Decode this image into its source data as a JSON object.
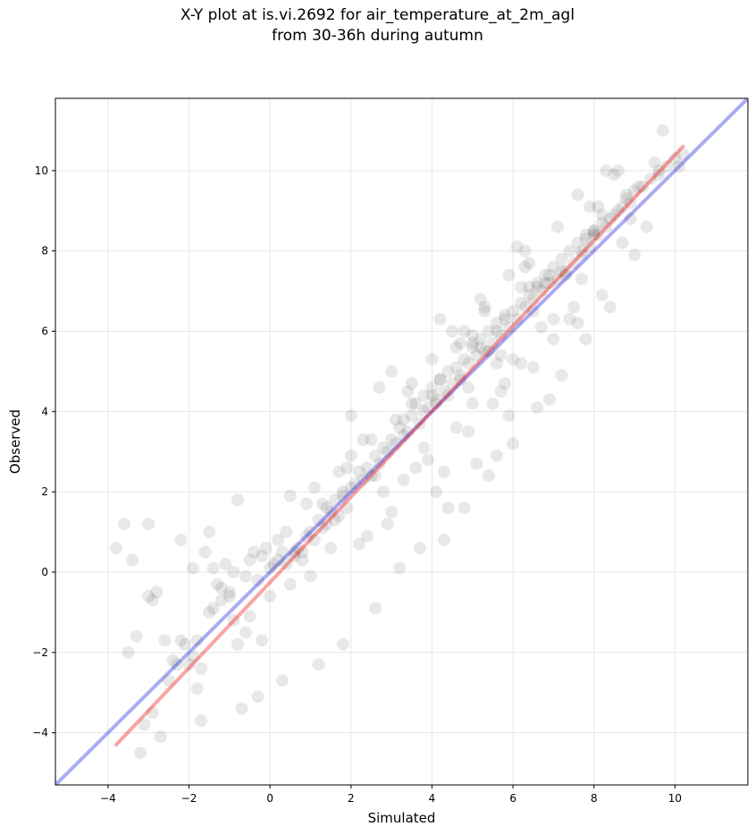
{
  "chart_data": {
    "type": "scatter",
    "title_lines": [
      "X-Y plot at is.vi.2692 for air_temperature_at_2m_agl",
      "from 30-36h during autumn"
    ],
    "xlabel": "Simulated",
    "ylabel": "Observed",
    "xlim": [
      -5.3,
      11.8
    ],
    "ylim": [
      -5.3,
      11.8
    ],
    "xticks": [
      -4,
      -2,
      0,
      2,
      4,
      6,
      8,
      10
    ],
    "yticks": [
      -4,
      -2,
      0,
      2,
      4,
      6,
      8,
      10
    ],
    "grid": true,
    "points_color": "#000000",
    "points_opacity": 0.09,
    "reference_line": {
      "color": "#0000dd",
      "opacity": 0.33,
      "from": [
        -5.3,
        -5.3
      ],
      "to": [
        11.8,
        11.8
      ]
    },
    "fit_line": {
      "color": "#ee1111",
      "opacity": 0.38,
      "from": [
        -3.8,
        -4.3
      ],
      "to": [
        10.2,
        10.6
      ]
    },
    "x": [
      -3.8,
      -3.6,
      -3.4,
      -3.3,
      -3.1,
      -3.0,
      -2.9,
      -2.8,
      -2.6,
      -2.4,
      -2.2,
      -2.1,
      -1.9,
      -1.8,
      -1.7,
      -1.6,
      -1.5,
      -1.4,
      -1.3,
      -1.2,
      -1.1,
      -1.0,
      -0.9,
      -0.8,
      -0.6,
      -0.5,
      -0.3,
      -0.2,
      -0.1,
      0.0,
      0.1,
      0.2,
      0.3,
      0.4,
      0.5,
      0.6,
      0.7,
      0.8,
      0.9,
      1.0,
      1.1,
      1.2,
      1.3,
      1.4,
      1.5,
      1.6,
      1.7,
      1.8,
      1.9,
      2.0,
      2.1,
      2.2,
      2.3,
      2.4,
      2.5,
      2.6,
      2.7,
      2.8,
      2.9,
      3.0,
      3.1,
      3.2,
      3.3,
      3.4,
      3.5,
      3.6,
      3.7,
      3.8,
      3.9,
      4.0,
      4.1,
      4.2,
      4.3,
      4.4,
      4.5,
      4.6,
      4.7,
      4.8,
      4.9,
      5.0,
      5.1,
      5.2,
      5.3,
      5.4,
      5.5,
      5.6,
      5.7,
      5.8,
      5.9,
      6.0,
      6.1,
      6.2,
      6.3,
      6.4,
      6.5,
      6.6,
      6.7,
      6.8,
      6.9,
      7.0,
      7.1,
      7.2,
      7.3,
      7.4,
      7.5,
      7.6,
      7.7,
      7.8,
      7.9,
      8.0,
      8.1,
      8.2,
      8.3,
      8.4,
      8.5,
      8.6,
      8.7,
      8.8,
      8.9,
      9.0,
      9.2,
      9.4,
      9.6,
      9.8,
      10.0,
      10.2,
      -3.2,
      -2.7,
      -2.0,
      -1.7,
      -0.7,
      -0.3,
      0.3,
      1.2,
      1.8,
      2.6,
      3.2,
      3.7,
      4.3,
      4.8,
      5.4,
      6.0,
      6.6,
      7.2,
      7.8,
      8.4,
      9.0,
      -1.5,
      -0.8,
      0.5,
      1.5,
      2.3,
      3.5,
      4.1,
      4.7,
      5.3,
      5.9,
      6.5,
      7.1,
      7.7,
      8.3,
      0.8,
      1.9,
      2.9,
      3.8,
      4.4,
      5.0,
      5.6,
      6.2,
      6.9,
      7.5,
      8.1,
      8.7,
      1.3,
      2.4,
      3.3,
      4.0,
      4.6,
      5.2,
      5.8,
      6.4,
      7.0,
      7.6,
      8.2,
      -1.9,
      -2.5,
      -1.2,
      0.0,
      1.0,
      2.0,
      3.0,
      3.9,
      4.9,
      5.7,
      6.7,
      7.3,
      8.0,
      8.8,
      9.5,
      -0.4,
      0.9,
      2.2,
      3.1,
      4.2,
      5.1,
      6.3,
      7.4,
      8.6,
      9.3,
      -3.5,
      -2.9,
      -0.9,
      -0.5,
      0.6,
      1.6,
      2.7,
      3.6,
      4.5,
      5.5,
      6.1,
      6.8,
      7.9,
      8.5,
      9.7,
      10.1,
      -1.0,
      0.4,
      1.4,
      2.5,
      3.4,
      4.3,
      5.0,
      5.9,
      6.6,
      7.6,
      8.9,
      2.0,
      3.0,
      4.1,
      4.8,
      5.6,
      6.2,
      7.0,
      7.8,
      -2.2,
      -1.4,
      1.1,
      2.8,
      3.8,
      4.6,
      5.3,
      6.0,
      6.9,
      -0.2,
      1.7,
      4.0,
      5.0,
      5.8,
      7.2,
      8.2,
      9.1,
      -3.0,
      -2.3,
      0.2,
      1.8,
      3.3,
      4.4,
      5.4,
      6.5,
      7.7,
      -1.8,
      -0.6,
      2.6,
      3.5,
      4.7,
      5.6,
      6.4,
      8.0,
      9.6,
      4.2,
      5.2,
      6.3,
      4.9,
      5.7
    ],
    "y": [
      0.6,
      1.2,
      0.3,
      -1.6,
      -3.8,
      1.2,
      -3.5,
      -0.5,
      -1.7,
      -2.2,
      0.8,
      -1.8,
      -2.1,
      -2.9,
      -2.4,
      0.5,
      -1.0,
      -0.9,
      -0.3,
      -0.4,
      0.2,
      -0.5,
      0.0,
      -1.8,
      -0.1,
      0.3,
      -0.2,
      0.4,
      0.6,
      0.1,
      0.2,
      0.3,
      0.5,
      0.2,
      -0.3,
      0.4,
      0.6,
      0.3,
      0.9,
      1.0,
      0.8,
      1.3,
      1.1,
      1.2,
      1.5,
      1.8,
      1.4,
      2.0,
      1.6,
      2.1,
      2.2,
      2.5,
      2.3,
      2.6,
      2.4,
      2.9,
      2.7,
      3.1,
      3.0,
      3.3,
      3.2,
      3.6,
      3.8,
      3.5,
      3.9,
      4.2,
      3.7,
      4.4,
      4.1,
      4.6,
      4.3,
      4.8,
      4.5,
      5.0,
      4.7,
      5.1,
      4.9,
      5.3,
      5.2,
      5.6,
      5.4,
      5.8,
      5.5,
      6.0,
      5.7,
      6.2,
      5.9,
      6.4,
      6.1,
      6.5,
      6.3,
      6.7,
      6.6,
      6.9,
      6.8,
      7.1,
      7.0,
      7.4,
      7.2,
      7.6,
      7.3,
      7.8,
      7.5,
      8.0,
      7.7,
      8.2,
      7.9,
      8.3,
      8.1,
      8.5,
      8.4,
      8.7,
      8.6,
      8.8,
      8.9,
      9.0,
      9.1,
      9.3,
      9.2,
      9.5,
      9.6,
      9.8,
      10.0,
      10.1,
      10.3,
      10.4,
      -4.5,
      -4.1,
      -2.3,
      -3.7,
      -3.4,
      -3.1,
      -2.7,
      -2.3,
      -1.8,
      -0.9,
      0.1,
      0.6,
      0.8,
      1.6,
      2.4,
      3.2,
      4.1,
      4.9,
      5.8,
      6.6,
      7.9,
      1.0,
      1.8,
      1.9,
      0.6,
      3.3,
      4.7,
      2.0,
      5.7,
      6.5,
      7.4,
      5.1,
      8.6,
      7.3,
      10.0,
      0.5,
      2.6,
      1.2,
      3.1,
      1.6,
      4.2,
      2.9,
      5.2,
      4.3,
      6.6,
      9.1,
      8.2,
      1.7,
      0.9,
      2.3,
      5.3,
      3.6,
      6.8,
      4.7,
      7.7,
      5.8,
      9.4,
      6.9,
      0.1,
      -2.7,
      -0.7,
      -0.6,
      -0.1,
      2.9,
      1.5,
      2.8,
      3.5,
      4.5,
      6.1,
      7.4,
      8.5,
      9.4,
      10.2,
      0.5,
      1.7,
      0.7,
      3.8,
      6.3,
      2.7,
      8.0,
      6.3,
      10.0,
      8.6,
      -2.0,
      -0.7,
      -1.2,
      -1.1,
      0.5,
      1.3,
      4.6,
      2.6,
      6.0,
      4.2,
      8.1,
      7.2,
      9.1,
      9.9,
      11.0,
      10.1,
      -0.6,
      1.0,
      1.6,
      3.3,
      4.5,
      2.5,
      5.9,
      3.9,
      7.2,
      6.2,
      8.8,
      3.9,
      5.0,
      4.2,
      6.0,
      5.2,
      7.1,
      6.3,
      8.4,
      -1.7,
      0.1,
      2.1,
      2.0,
      4.0,
      5.6,
      6.6,
      5.3,
      7.4,
      -1.7,
      2.5,
      4.4,
      5.7,
      6.3,
      7.5,
      8.9,
      9.6,
      -0.6,
      -2.3,
      0.8,
      1.9,
      3.4,
      4.4,
      5.5,
      6.5,
      8.0,
      -1.7,
      -1.5,
      2.4,
      4.2,
      4.8,
      6.0,
      7.1,
      8.4,
      9.9,
      4.8,
      5.6,
      7.6,
      4.6,
      5.4
    ]
  }
}
